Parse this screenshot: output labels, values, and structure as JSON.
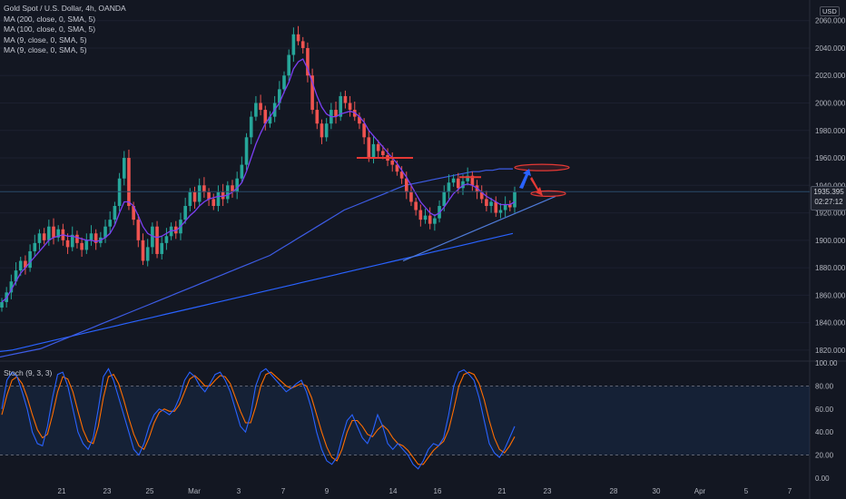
{
  "header": {
    "title": "Gold Spot / U.S. Dollar, 4h, OANDA",
    "indicators": [
      "MA (200, close, 0, SMA, 5)",
      "MA (100, close, 0, SMA, 5)",
      "MA (9, close, 0, SMA, 5)",
      "MA (9, close, 0, SMA, 5)"
    ],
    "currency": "USD"
  },
  "price_axis": {
    "ticks": [
      "2060.000",
      "2040.000",
      "2020.000",
      "2000.000",
      "1980.000",
      "1960.000",
      "1940.000",
      "1920.000",
      "1900.000",
      "1880.000",
      "1860.000",
      "1840.000",
      "1820.000"
    ],
    "tick_values": [
      2060,
      2040,
      2020,
      2000,
      1980,
      1960,
      1940,
      1920,
      1900,
      1880,
      1860,
      1840,
      1820
    ]
  },
  "current_price": {
    "value": "1935.395",
    "countdown": "02:27:12"
  },
  "time_axis": {
    "labels": [
      "21",
      "23",
      "25",
      "Mar",
      "3",
      "7",
      "9",
      "14",
      "16",
      "21",
      "23",
      "28",
      "30",
      "Apr",
      "5",
      "7"
    ]
  },
  "stochastic": {
    "label": "Stoch (9, 3, 3)",
    "ticks": [
      "100.00",
      "80.00",
      "60.00",
      "40.00",
      "20.00",
      "0.00"
    ],
    "tick_values": [
      100,
      80,
      60,
      40,
      20,
      0
    ],
    "bands": [
      80,
      20
    ]
  },
  "colors": {
    "background": "#131722",
    "up": "#26a69a",
    "down": "#ef5350",
    "ma9": "#7b3ff2",
    "ma100": "#3d5ce6",
    "ma200": "#2962ff",
    "stoch_k": "#2962ff",
    "stoch_d": "#ff6d00",
    "annotation_red": "#e53935",
    "annotation_blue": "#2962ff"
  },
  "chart_data": {
    "type": "candlestick",
    "ylim": [
      1812,
      2075
    ],
    "close_series": [
      1855,
      1862,
      1870,
      1878,
      1885,
      1880,
      1892,
      1898,
      1905,
      1900,
      1910,
      1902,
      1908,
      1900,
      1895,
      1904,
      1898,
      1893,
      1900,
      1905,
      1898,
      1902,
      1910,
      1915,
      1925,
      1945,
      1960,
      1925,
      1915,
      1900,
      1885,
      1895,
      1910,
      1890,
      1898,
      1903,
      1910,
      1905,
      1915,
      1925,
      1935,
      1928,
      1940,
      1935,
      1930,
      1925,
      1935,
      1930,
      1940,
      1935,
      1945,
      1955,
      1975,
      1990,
      2000,
      1995,
      1985,
      1990,
      2000,
      2010,
      2020,
      2035,
      2050,
      2045,
      2040,
      2020,
      1995,
      1985,
      1975,
      1985,
      1995,
      1990,
      2005,
      2000,
      1995,
      1990,
      1985,
      1975,
      1960,
      1970,
      1965,
      1962,
      1958,
      1955,
      1950,
      1945,
      1935,
      1928,
      1922,
      1915,
      1918,
      1912,
      1916,
      1925,
      1935,
      1942,
      1945,
      1938,
      1943,
      1947,
      1940,
      1935,
      1930,
      1925,
      1928,
      1920,
      1922,
      1926,
      1924,
      1935
    ],
    "ma9": [
      1855,
      1858,
      1864,
      1870,
      1876,
      1880,
      1884,
      1888,
      1892,
      1896,
      1900,
      1902,
      1903,
      1904,
      1903,
      1903,
      1902,
      1901,
      1900,
      1900,
      1899,
      1900,
      1902,
      1905,
      1911,
      1920,
      1928,
      1928,
      1925,
      1918,
      1910,
      1905,
      1903,
      1902,
      1903,
      1905,
      1907,
      1907,
      1910,
      1914,
      1918,
      1921,
      1925,
      1928,
      1930,
      1931,
      1932,
      1932,
      1933,
      1935,
      1938,
      1942,
      1950,
      1960,
      1970,
      1978,
      1985,
      1990,
      1995,
      2000,
      2008,
      2015,
      2025,
      2030,
      2032,
      2025,
      2015,
      2005,
      1997,
      1992,
      1990,
      1990,
      1992,
      1993,
      1994,
      1993,
      1990,
      1986,
      1980,
      1976,
      1972,
      1968,
      1964,
      1960,
      1956,
      1951,
      1946,
      1940,
      1934,
      1928,
      1924,
      1920,
      1918,
      1920,
      1924,
      1929,
      1934,
      1937,
      1940,
      1941,
      1940,
      1938,
      1935,
      1932,
      1930,
      1928,
      1926,
      1926,
      1926,
      1928
    ],
    "ma100": [
      1815,
      1816,
      1817,
      1818,
      1819,
      1820,
      1821,
      1823,
      1825,
      1827,
      1829,
      1831,
      1833,
      1835,
      1837,
      1839,
      1841,
      1843,
      1845,
      1847,
      1849,
      1851,
      1853,
      1855,
      1857,
      1859,
      1861,
      1863,
      1865,
      1867,
      1869,
      1871,
      1873,
      1875,
      1877,
      1879,
      1881,
      1883,
      1885,
      1887,
      1889,
      1892,
      1895,
      1898,
      1901,
      1904,
      1907,
      1910,
      1913,
      1916,
      1919,
      1922,
      1924,
      1926,
      1928,
      1930,
      1932,
      1934,
      1936,
      1938,
      1940,
      1941,
      1942,
      1943,
      1944,
      1945,
      1946,
      1947,
      1948,
      1949,
      1950,
      1950,
      1951,
      1951,
      1952,
      1952,
      1952
    ],
    "ma200": [
      1819,
      1819.5,
      1820,
      1821,
      1822,
      1823,
      1824,
      1825,
      1826,
      1827,
      1828,
      1829,
      1830,
      1831,
      1832,
      1833,
      1834,
      1835,
      1836,
      1837,
      1838,
      1839,
      1840,
      1841,
      1842,
      1843,
      1844,
      1845,
      1846,
      1847,
      1848,
      1849,
      1850,
      1851,
      1852,
      1853,
      1854,
      1855,
      1856,
      1857,
      1858,
      1859,
      1860,
      1861,
      1862,
      1863,
      1864,
      1865,
      1866,
      1867,
      1868,
      1869,
      1870,
      1871,
      1872,
      1873,
      1874,
      1875,
      1876,
      1877,
      1878,
      1879,
      1880,
      1881,
      1882,
      1883,
      1884,
      1885,
      1886,
      1887,
      1888,
      1889,
      1890,
      1891,
      1892,
      1893,
      1894,
      1895,
      1896,
      1897,
      1898,
      1899,
      1900,
      1901,
      1902,
      1903,
      1904,
      1905
    ],
    "stoch_k": [
      60,
      85,
      92,
      88,
      75,
      60,
      40,
      30,
      28,
      45,
      70,
      90,
      92,
      80,
      60,
      40,
      30,
      25,
      35,
      60,
      88,
      95,
      85,
      70,
      55,
      40,
      25,
      20,
      30,
      45,
      55,
      60,
      58,
      55,
      60,
      70,
      85,
      92,
      88,
      80,
      75,
      82,
      90,
      92,
      85,
      75,
      60,
      45,
      40,
      55,
      80,
      92,
      95,
      90,
      85,
      80,
      75,
      78,
      82,
      85,
      75,
      60,
      40,
      25,
      15,
      12,
      18,
      35,
      50,
      55,
      45,
      35,
      30,
      40,
      55,
      45,
      30,
      25,
      30,
      25,
      20,
      12,
      8,
      15,
      25,
      30,
      28,
      35,
      55,
      80,
      92,
      94,
      90,
      85,
      70,
      50,
      30,
      22,
      18,
      25,
      35,
      45
    ],
    "stoch_d": [
      55,
      72,
      85,
      88,
      82,
      70,
      55,
      42,
      35,
      38,
      55,
      75,
      88,
      86,
      75,
      58,
      42,
      32,
      30,
      45,
      70,
      88,
      90,
      82,
      68,
      52,
      38,
      28,
      25,
      35,
      48,
      57,
      60,
      58,
      58,
      64,
      75,
      86,
      89,
      85,
      80,
      80,
      85,
      89,
      88,
      82,
      70,
      58,
      48,
      48,
      62,
      80,
      90,
      92,
      88,
      84,
      80,
      78,
      80,
      82,
      80,
      70,
      55,
      40,
      27,
      18,
      15,
      25,
      40,
      50,
      50,
      45,
      38,
      36,
      42,
      46,
      42,
      35,
      30,
      28,
      24,
      18,
      12,
      12,
      18,
      24,
      28,
      32,
      42,
      60,
      80,
      90,
      92,
      90,
      82,
      68,
      50,
      35,
      25,
      22,
      28,
      36
    ]
  }
}
